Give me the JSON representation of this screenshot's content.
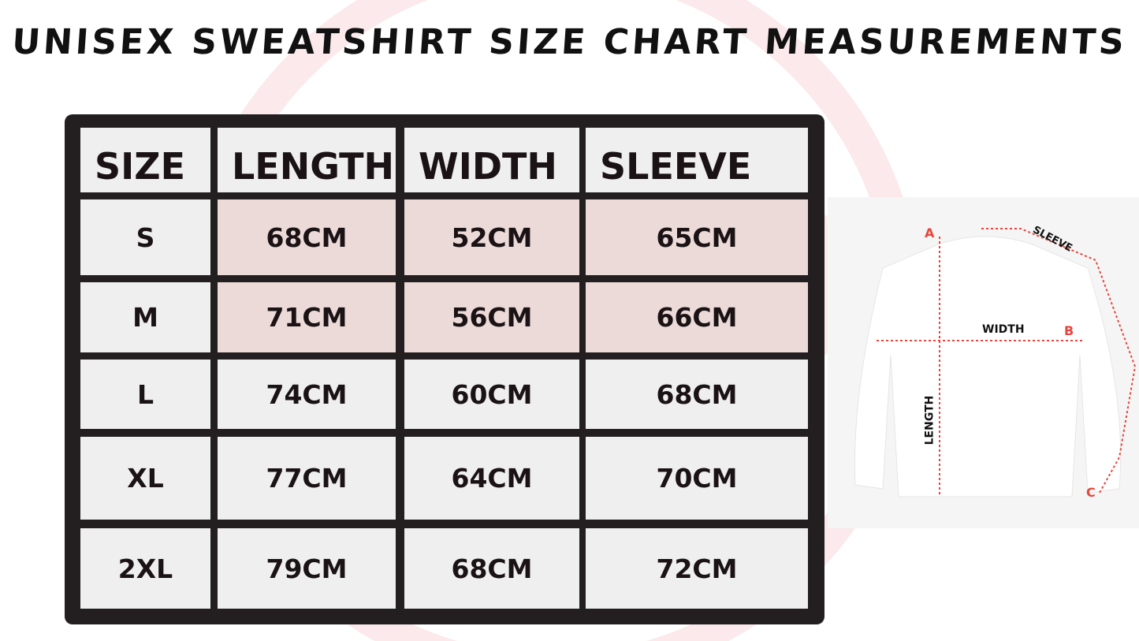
{
  "title": "UNISEX SWEATSHIRT SIZE CHART MEASUREMENTS",
  "table": {
    "headers": [
      "SIZE",
      "LENGTH",
      "WIDTH",
      "SLEEVE"
    ],
    "rows": [
      [
        "S",
        "68CM",
        "52CM",
        "65CM"
      ],
      [
        "M",
        "71CM",
        "56CM",
        "66CM"
      ],
      [
        "L",
        "74CM",
        "60CM",
        "68CM"
      ],
      [
        "XL",
        "77CM",
        "64CM",
        "70CM"
      ],
      [
        "2XL",
        "79CM",
        "68CM",
        "72CM"
      ]
    ]
  },
  "diagram": {
    "labels": {
      "a": "A",
      "b": "B",
      "c": "C",
      "sleeve": "SLEEVE",
      "width": "WIDTH",
      "length": "LENGTH"
    },
    "measure_line_color": "#e8453c"
  },
  "colors": {
    "frame": "#231f20",
    "background_watermark": "#f4c7c0"
  }
}
